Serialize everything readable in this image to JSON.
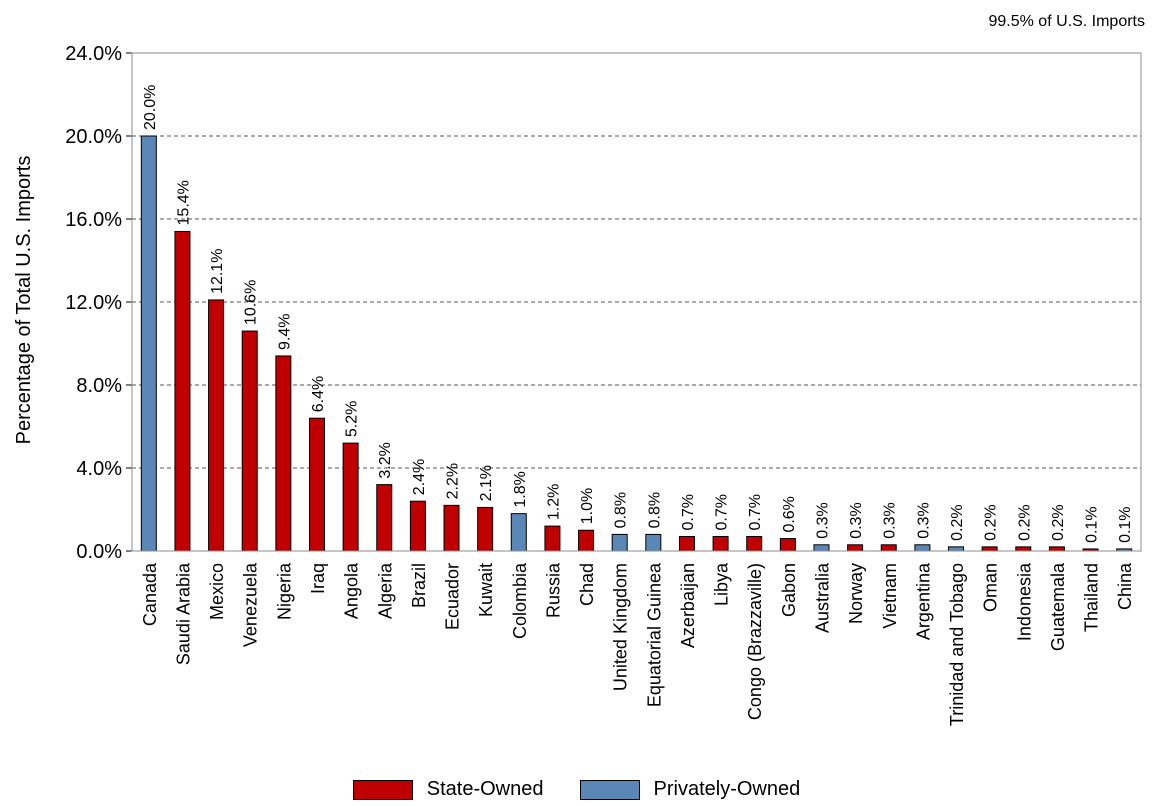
{
  "chart_data": {
    "type": "bar",
    "title": "",
    "subtitle": "99.5% of U.S. Imports",
    "xlabel": "",
    "ylabel": "Percentage of Total U.S. Imports",
    "ylim": [
      0,
      24
    ],
    "yticks": [
      "0.0%",
      "4.0%",
      "8.0%",
      "12.0%",
      "16.0%",
      "20.0%",
      "24.0%"
    ],
    "grid": "horizontal dashed",
    "legend_position": "bottom",
    "colors": {
      "State-Owned": "#C00000",
      "Privately-Owned": "#5B87B7"
    },
    "legend": [
      {
        "label": "State-Owned",
        "color": "#C00000"
      },
      {
        "label": "Privately-Owned",
        "color": "#5B87B7"
      }
    ],
    "categories": [
      "Canada",
      "Saudi Arabia",
      "Mexico",
      "Venezuela",
      "Nigeria",
      "Iraq",
      "Angola",
      "Algeria",
      "Brazil",
      "Ecuador",
      "Kuwait",
      "Colombia",
      "Russia",
      "Chad",
      "United Kingdom",
      "Equatorial Guinea",
      "Azerbaijan",
      "Libya",
      "Congo (Brazzaville)",
      "Gabon",
      "Australia",
      "Norway",
      "Vietnam",
      "Argentina",
      "Trinidad and Tobago",
      "Oman",
      "Indonesia",
      "Guatemala",
      "Thailand",
      "China"
    ],
    "values": [
      20.0,
      15.4,
      12.1,
      10.6,
      9.4,
      6.4,
      5.2,
      3.2,
      2.4,
      2.2,
      2.1,
      1.8,
      1.2,
      1.0,
      0.8,
      0.8,
      0.7,
      0.7,
      0.7,
      0.6,
      0.3,
      0.3,
      0.3,
      0.3,
      0.2,
      0.2,
      0.2,
      0.2,
      0.1,
      0.1
    ],
    "data_labels": [
      "20.0%",
      "15.4%",
      "12.1%",
      "10.6%",
      "9.4%",
      "6.4%",
      "5.2%",
      "3.2%",
      "2.4%",
      "2.2%",
      "2.1%",
      "1.8%",
      "1.2%",
      "1.0%",
      "0.8%",
      "0.8%",
      "0.7%",
      "0.7%",
      "0.7%",
      "0.6%",
      "0.3%",
      "0.3%",
      "0.3%",
      "0.3%",
      "0.2%",
      "0.2%",
      "0.2%",
      "0.2%",
      "0.1%",
      "0.1%"
    ],
    "ownership": [
      "Privately-Owned",
      "State-Owned",
      "State-Owned",
      "State-Owned",
      "State-Owned",
      "State-Owned",
      "State-Owned",
      "State-Owned",
      "State-Owned",
      "State-Owned",
      "State-Owned",
      "Privately-Owned",
      "State-Owned",
      "State-Owned",
      "Privately-Owned",
      "Privately-Owned",
      "State-Owned",
      "State-Owned",
      "State-Owned",
      "State-Owned",
      "Privately-Owned",
      "State-Owned",
      "State-Owned",
      "Privately-Owned",
      "Privately-Owned",
      "State-Owned",
      "State-Owned",
      "State-Owned",
      "State-Owned",
      "Privately-Owned"
    ]
  }
}
